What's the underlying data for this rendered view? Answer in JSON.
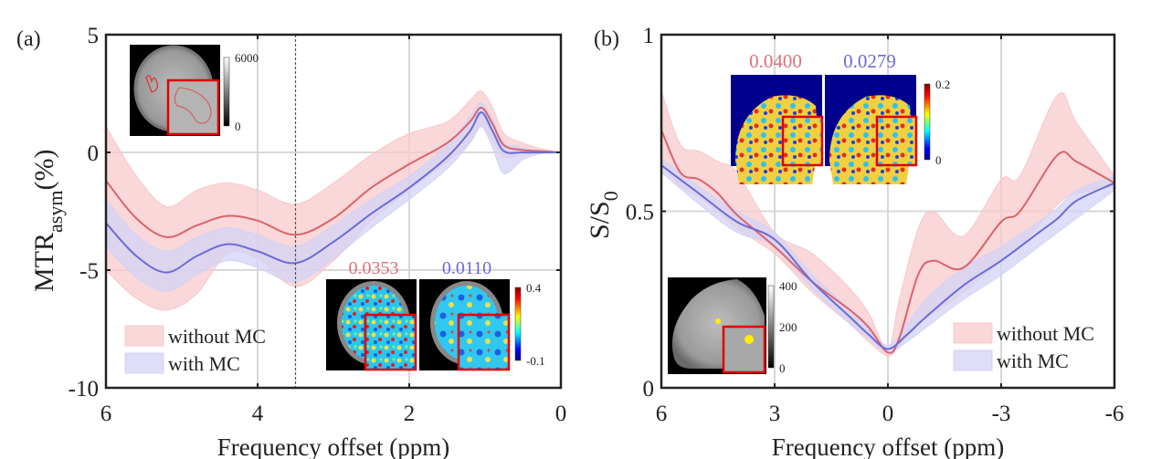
{
  "chart_data": [
    {
      "panel_label": "(a)",
      "type": "area",
      "xlabel": "Frequency offset (ppm)",
      "ylabel_main": "MTR",
      "ylabel_sub": "asym",
      "ylabel_unit": "(%)",
      "xlim": [
        6,
        0
      ],
      "ylim": [
        -10,
        5
      ],
      "x_reversed": true,
      "xticks": [
        "6",
        "4",
        "2",
        "0"
      ],
      "xtick_values": [
        6,
        4,
        2,
        0
      ],
      "yticks": [
        "5",
        "0",
        "-5",
        "-10"
      ],
      "ytick_values": [
        5,
        0,
        -5,
        -10
      ],
      "grid": true,
      "vline": 3.5,
      "legend_placement": "bottom-left",
      "series": [
        {
          "name": "without MC",
          "color": "#d9646c",
          "fill": "#f8c9cc",
          "x": [
            6,
            5.6,
            5.2,
            4.8,
            4.4,
            4.0,
            3.5,
            3.0,
            2.5,
            2.0,
            1.5,
            1.2,
            1.05,
            0.9,
            0.75,
            0.5,
            0.25,
            0
          ],
          "mean": [
            -1.2,
            -2.8,
            -3.6,
            -3.1,
            -2.7,
            -2.9,
            -3.5,
            -2.8,
            -1.5,
            -0.5,
            0.4,
            1.3,
            1.9,
            1.2,
            0.3,
            0.1,
            0.05,
            0
          ],
          "upper": [
            1.1,
            -1.0,
            -2.3,
            -1.6,
            -1.3,
            -1.6,
            -2.2,
            -1.3,
            -0.1,
            0.8,
            1.3,
            2.2,
            2.6,
            1.9,
            0.8,
            0.4,
            0.15,
            0
          ],
          "lower": [
            -5.0,
            -6.2,
            -6.7,
            -6.0,
            -4.3,
            -4.5,
            -5.7,
            -4.6,
            -2.9,
            -1.6,
            -0.4,
            0.4,
            1.1,
            0.5,
            -0.2,
            -0.1,
            -0.05,
            0
          ]
        },
        {
          "name": "with MC",
          "color": "#6b6bd6",
          "fill": "#d3d3f5",
          "x": [
            6,
            5.6,
            5.2,
            4.8,
            4.4,
            4.0,
            3.5,
            3.0,
            2.5,
            2.0,
            1.5,
            1.2,
            1.05,
            0.9,
            0.75,
            0.5,
            0.25,
            0
          ],
          "mean": [
            -3.0,
            -4.4,
            -5.1,
            -4.4,
            -3.9,
            -4.2,
            -4.7,
            -3.8,
            -2.6,
            -1.5,
            -0.2,
            0.9,
            1.7,
            0.9,
            0.05,
            0.0,
            0.0,
            0
          ],
          "upper": [
            -2.0,
            -3.5,
            -4.2,
            -3.6,
            -3.2,
            -3.5,
            -4.0,
            -3.1,
            -2.0,
            -1.0,
            0.3,
            1.5,
            2.1,
            1.4,
            0.4,
            0.2,
            0.05,
            0
          ],
          "lower": [
            -4.0,
            -5.3,
            -5.9,
            -5.2,
            -4.6,
            -4.9,
            -5.5,
            -4.5,
            -3.2,
            -2.0,
            -0.7,
            0.4,
            1.1,
            0.2,
            -0.9,
            -0.3,
            -0.05,
            0
          ]
        }
      ],
      "insets": {
        "anatomy_colorbar": {
          "max": "6000",
          "min": "0"
        },
        "maps_colorbar": {
          "max": "0.4",
          "min": "-0.1"
        },
        "map_values": [
          {
            "value": "0.0353",
            "color": "#e07078"
          },
          {
            "value": "0.0110",
            "color": "#6b6bd6"
          }
        ]
      }
    },
    {
      "panel_label": "(b)",
      "type": "area",
      "xlabel": "Frequency offset (ppm)",
      "ylabel_main": "S/S",
      "ylabel_sub": "0",
      "xlim": [
        6,
        -6
      ],
      "ylim": [
        0,
        1
      ],
      "x_reversed": true,
      "xticks": [
        "6",
        "3",
        "0",
        "-3",
        "-6"
      ],
      "xtick_values": [
        6,
        3,
        0,
        -3,
        -6
      ],
      "yticks": [
        "1",
        "0.5",
        "0"
      ],
      "ytick_values": [
        1,
        0.5,
        0
      ],
      "grid": true,
      "legend_placement": "bottom-right",
      "series": [
        {
          "name": "without MC",
          "color": "#d9646c",
          "fill": "#f8c9cc",
          "x": [
            6,
            5.5,
            5.0,
            4.5,
            4.0,
            3.0,
            2.0,
            1.0,
            0.5,
            0.0,
            -0.3,
            -0.8,
            -1.2,
            -2.0,
            -3.0,
            -3.5,
            -4.5,
            -5.0,
            -6.0
          ],
          "mean": [
            0.73,
            0.61,
            0.59,
            0.55,
            0.49,
            0.4,
            0.3,
            0.22,
            0.17,
            0.1,
            0.14,
            0.32,
            0.36,
            0.34,
            0.47,
            0.5,
            0.66,
            0.64,
            0.58
          ],
          "upper": [
            0.84,
            0.69,
            0.67,
            0.64,
            0.61,
            0.44,
            0.38,
            0.28,
            0.21,
            0.11,
            0.25,
            0.45,
            0.5,
            0.43,
            0.59,
            0.6,
            0.83,
            0.75,
            0.6
          ],
          "lower": [
            0.64,
            0.57,
            0.54,
            0.5,
            0.45,
            0.38,
            0.27,
            0.18,
            0.13,
            0.09,
            0.12,
            0.18,
            0.21,
            0.27,
            0.36,
            0.4,
            0.52,
            0.55,
            0.57
          ]
        },
        {
          "name": "with MC",
          "color": "#6b6bd6",
          "fill": "#d3d3f5",
          "x": [
            6,
            5.0,
            4.0,
            3.0,
            2.0,
            1.0,
            0.5,
            0.0,
            -0.5,
            -1.0,
            -2.0,
            -3.0,
            -4.0,
            -4.5,
            -5.0,
            -6.0
          ],
          "mean": [
            0.63,
            0.55,
            0.47,
            0.42,
            0.3,
            0.2,
            0.15,
            0.11,
            0.15,
            0.2,
            0.29,
            0.36,
            0.44,
            0.48,
            0.53,
            0.58
          ],
          "upper": [
            0.65,
            0.57,
            0.5,
            0.44,
            0.32,
            0.22,
            0.17,
            0.12,
            0.18,
            0.25,
            0.34,
            0.4,
            0.47,
            0.51,
            0.56,
            0.6
          ],
          "lower": [
            0.61,
            0.52,
            0.44,
            0.4,
            0.28,
            0.18,
            0.14,
            0.1,
            0.13,
            0.17,
            0.25,
            0.32,
            0.4,
            0.44,
            0.48,
            0.56
          ]
        }
      ],
      "insets": {
        "maps_colorbar": {
          "max": "0.2",
          "min": "0"
        },
        "anatomy_colorbar": {
          "max": "400",
          "mid": "200",
          "min": "0"
        },
        "map_values": [
          {
            "value": "0.0400",
            "color": "#e07078"
          },
          {
            "value": "0.0279",
            "color": "#6b6bd6"
          }
        ]
      }
    }
  ]
}
